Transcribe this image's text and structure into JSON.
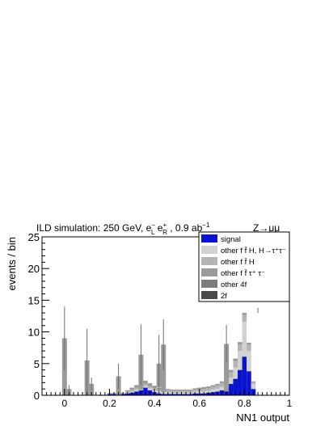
{
  "chart_data": {
    "type": "bar",
    "stacked": true,
    "title_parts": {
      "prefix": "ILD simulation: 250 GeV, e",
      "sup1": "−",
      "sub1": "L",
      "mid1": " e",
      "sup2": "+",
      "sub2": "R",
      "mid2": " , 0.9 ab",
      "sup3": "−1"
    },
    "channel_label": "Z→μμ",
    "xlabel": "NN1 output",
    "ylabel": "events / bin",
    "xlim": [
      -0.1,
      1.0
    ],
    "ylim": [
      0,
      25
    ],
    "x_ticks": [
      "0",
      "0.2",
      "0.4",
      "0.6",
      "0.8",
      "1"
    ],
    "y_ticks": [
      "0",
      "5",
      "10",
      "15",
      "20",
      "25"
    ],
    "bin_width": 0.02,
    "bin_edges_start": -0.01,
    "colors": {
      "signal": "#0a14cc",
      "fH_tautau": "#d2d2d2",
      "fH": "#b4b4b4",
      "ff_tautau": "#9a9a9a",
      "other4f": "#7d7d7d",
      "twof": "#4a4a4a"
    },
    "legend": {
      "placement": "top-right",
      "entries": [
        {
          "key": "signal",
          "label": "signal"
        },
        {
          "key": "fH_tautau",
          "label": "other f f̄ H, H→τ⁺τ⁻"
        },
        {
          "key": "fH",
          "label": "other f f̄ H"
        },
        {
          "key": "ff_tautau",
          "label": "other f f̄ τ⁺ τ⁻"
        },
        {
          "key": "other4f",
          "label": "other 4f"
        },
        {
          "key": "twof",
          "label": "2f"
        }
      ]
    },
    "series": [
      {
        "key": "signal",
        "values": [
          0,
          0,
          0,
          0,
          0,
          0,
          0,
          0,
          0,
          0,
          0.2,
          0.2,
          0.2,
          0.2,
          0.3,
          0.4,
          0.6,
          0.8,
          1.2,
          0.8,
          0.5,
          0.3,
          0.2,
          0.2,
          0.2,
          0.2,
          0.2,
          0.2,
          0.2,
          0.3,
          0.3,
          0.3,
          0.4,
          0.5,
          0.6,
          0.8,
          1.2,
          1.8,
          2.6,
          4.0,
          6.1,
          3.8,
          1.0
        ]
      },
      {
        "key": "fH_tautau",
        "values": [
          0,
          0,
          0,
          0,
          0,
          0,
          0,
          0,
          0,
          0,
          0,
          0,
          0,
          0,
          0.1,
          0.2,
          0.3,
          0.4,
          0.3,
          0.3,
          0.3,
          0.3,
          0.3,
          0.3,
          0.2,
          0.2,
          0.2,
          0.2,
          0.2,
          0.3,
          0.3,
          0.3,
          0.3,
          0.4,
          0.4,
          0.5,
          0.7,
          1.0,
          1.8,
          3.0,
          5.5,
          3.2,
          0.8
        ]
      },
      {
        "key": "fH",
        "values": [
          0,
          0,
          0,
          0,
          0,
          0,
          0,
          0,
          0.1,
          0.1,
          0.2,
          0.2,
          0.2,
          0.2,
          0.2,
          0.3,
          0.3,
          0.3,
          0.3,
          0.3,
          0.3,
          0.3,
          0.3,
          0.3,
          0.3,
          0.3,
          0.3,
          0.3,
          0.3,
          0.3,
          0.3,
          0.4,
          0.4,
          0.4,
          0.5,
          0.6,
          0.7,
          0.8,
          1.0,
          1.0,
          1.1,
          1.0,
          0.3
        ]
      },
      {
        "key": "ff_tautau",
        "values": [
          0,
          0,
          0,
          0,
          0,
          0,
          0,
          0,
          0,
          0,
          0,
          0,
          0,
          0,
          0.2,
          0.3,
          0.4,
          0.6,
          0.5,
          0.5,
          0.4,
          0.3,
          0.2,
          0.2,
          0.2,
          0.2,
          0.2,
          0.2,
          0.2,
          0.2,
          0.3,
          0.3,
          0.3,
          0.3,
          0.3,
          0.3,
          0.4,
          0.4,
          0.4,
          0.4,
          0.3,
          0.3,
          0.1
        ]
      },
      {
        "key": "other4f",
        "values": [
          0,
          0,
          0,
          0,
          0,
          0,
          0,
          0,
          0,
          0,
          0,
          0,
          0,
          0,
          0,
          0,
          0,
          0,
          0,
          0,
          0,
          0,
          0,
          0,
          0,
          0,
          0,
          0,
          0,
          0,
          0,
          0,
          0,
          0,
          0,
          0,
          0,
          0,
          0,
          0,
          0,
          0,
          0
        ]
      },
      {
        "key": "twof",
        "values": [
          0,
          0,
          0,
          0,
          0,
          0,
          0,
          0,
          0,
          0,
          0,
          0,
          0,
          0,
          0,
          0,
          0,
          0,
          0,
          0,
          0,
          0,
          0,
          0,
          0,
          0,
          0,
          0,
          0,
          0,
          0,
          0,
          0,
          0,
          0,
          0,
          0,
          0,
          0,
          0,
          0,
          0,
          0
        ]
      }
    ],
    "spikes": [
      {
        "x": 0.0,
        "base": 0,
        "height": 9.0,
        "error": 5.0
      },
      {
        "x": 0.02,
        "base": 0,
        "height": 1.0,
        "error": 0.6
      },
      {
        "x": 0.1,
        "base": 0,
        "height": 5.5,
        "error": 5.0
      },
      {
        "x": 0.12,
        "base": 0,
        "height": 1.8,
        "error": 1.0
      },
      {
        "x": 0.24,
        "base": 0,
        "height": 3.0,
        "error": 2.0
      },
      {
        "x": 0.34,
        "base": 0.9,
        "height": 5.5,
        "error": 4.8
      },
      {
        "x": 0.42,
        "base": 1.3,
        "height": 3.7,
        "error": 4.5
      },
      {
        "x": 0.44,
        "base": 0.5,
        "height": 7.5,
        "error": 4.0
      },
      {
        "x": 0.72,
        "base": 0.6,
        "height": 7.5,
        "error": 3.0
      }
    ],
    "errors": [
      {
        "x": 0.86,
        "top": 13.4,
        "error": 0.4
      }
    ]
  }
}
